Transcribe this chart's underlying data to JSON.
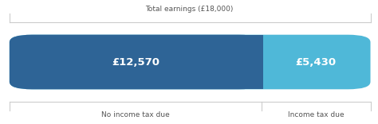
{
  "total": 18000,
  "segment1_value": 12570,
  "segment2_value": 5430,
  "segment1_label": "£12,570",
  "segment2_label": "£5,430",
  "segment1_color": "#2e6496",
  "segment2_color": "#4fb8d8",
  "top_label": "Total earnings (£18,000)",
  "bottom_label1": "No income tax due",
  "bottom_label2": "Income tax due",
  "text_color": "#ffffff",
  "bg_color": "#ffffff",
  "label_color": "#555555",
  "line_color": "#cccccc",
  "bar_label_fontsize": 9.5,
  "annot_fontsize": 6.5
}
